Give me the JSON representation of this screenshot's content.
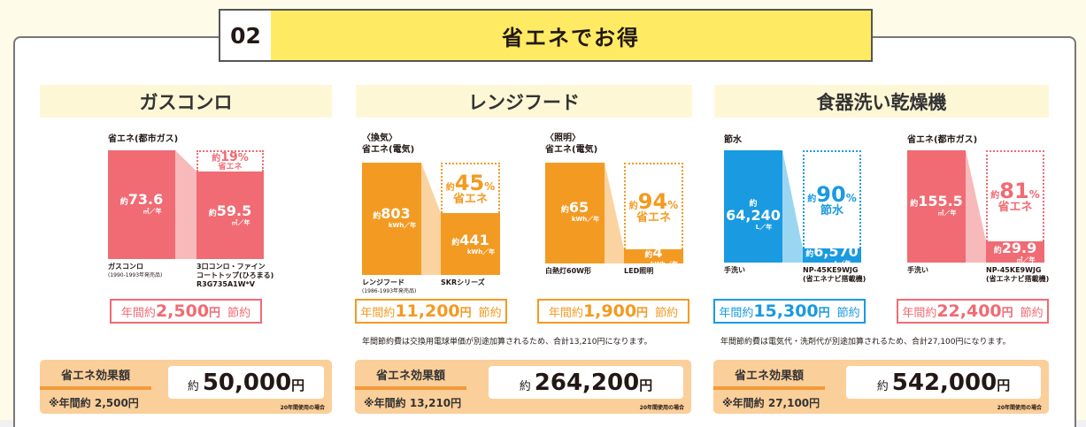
{
  "header": {
    "number": "02",
    "title": "省エネでお得"
  },
  "colors": {
    "pink": "#f06b73",
    "pink_light": "#f8b9bb",
    "orange": "#f39a22",
    "orange_light": "#fbd3a0",
    "blue": "#1a9ae0",
    "blue_light": "#9ad6f2",
    "effect_bg": "#fbcf9a",
    "effect_line": "#f39a3a",
    "title_yellow": "#ffeb63",
    "col_title_bg": "#fef7d6"
  },
  "columns": [
    {
      "title": "ガスコンロ",
      "charts": [
        {
          "label": "省エネ(都市ガス)",
          "color": "pink",
          "before": {
            "prefix": "約",
            "value": "73.6",
            "unit": "㎥／年",
            "caption": "ガスコンロ",
            "sub": "(1990-1993年発売品)"
          },
          "after": {
            "prefix": "約",
            "value": "59.5",
            "unit": "㎥／年",
            "caption": "3口コンロ・ファイン",
            "caption2": "コートトップ(ひろまる)",
            "caption3": "R3G735A1W*V"
          },
          "saving_pct": {
            "prefix": "約",
            "value": "19",
            "unit": "%",
            "text": "省エネ"
          }
        }
      ],
      "annual_savings": [
        {
          "prefix": "年間約",
          "amount": "2,500",
          "yen": "円",
          "suffix": "節約",
          "color": "pink"
        }
      ],
      "effect": {
        "label": "省エネ効果額",
        "annual": "※年間約 2,500円",
        "prefix": "約",
        "amount": "50,000",
        "yen": "円",
        "condition": "20年間使用の場合"
      }
    },
    {
      "title": "レンジフード",
      "charts": [
        {
          "label_top": "〈換気〉",
          "label": "省エネ(電気)",
          "color": "orange",
          "before": {
            "prefix": "約",
            "value": "803",
            "unit": "kWh／年",
            "caption": "レンジフード",
            "sub": "(1986-1993年発売品)"
          },
          "after": {
            "prefix": "約",
            "value": "441",
            "unit": "kWh／年",
            "caption": "SKRシリーズ"
          },
          "saving_pct": {
            "prefix": "約",
            "value": "45",
            "unit": "%",
            "text": "省エネ"
          }
        },
        {
          "label_top": "〈照明〉",
          "label": "省エネ(電気)",
          "color": "orange",
          "before": {
            "prefix": "約",
            "value": "65",
            "unit": "kWh／年",
            "caption": "白熱灯60W形"
          },
          "after": {
            "prefix": "約",
            "value": "4",
            "unit": "kWh／年",
            "caption": "LED照明"
          },
          "saving_pct": {
            "prefix": "約",
            "value": "94",
            "unit": "%",
            "text": "省エネ"
          }
        }
      ],
      "annual_savings": [
        {
          "prefix": "年間約",
          "amount": "11,200",
          "yen": "円",
          "suffix": "節約",
          "color": "orange"
        },
        {
          "prefix": "年間約",
          "amount": "1,900",
          "yen": "円",
          "suffix": "節約",
          "color": "orange"
        }
      ],
      "note": "年間節約費は交換用電球単価が別途加算されるため、合計13,210円になります。",
      "effect": {
        "label": "省エネ効果額",
        "annual": "※年間約 13,210円",
        "prefix": "約",
        "amount": "264,200",
        "yen": "円",
        "condition": "20年間使用の場合"
      }
    },
    {
      "title": "食器洗い乾燥機",
      "charts": [
        {
          "label": "節水",
          "color": "blue",
          "before": {
            "prefix": "約",
            "value": "64,240",
            "unit": "L／年",
            "caption": "手洗い"
          },
          "after": {
            "prefix": "約",
            "value": "6,570",
            "unit": "L／年",
            "caption": "NP-45KE9WJG",
            "caption2": "(省エネナビ搭載機)"
          },
          "saving_pct": {
            "prefix": "約",
            "value": "90",
            "unit": "%",
            "text": "節水"
          }
        },
        {
          "label": "省エネ(都市ガス)",
          "color": "pink",
          "before": {
            "prefix": "約",
            "value": "155.5",
            "unit": "㎥／年",
            "caption": "手洗い"
          },
          "after": {
            "prefix": "約",
            "value": "29.9",
            "unit": "㎥／年",
            "caption": "NP-45KE9WJG",
            "caption2": "(省エネナビ搭載機)"
          },
          "saving_pct": {
            "prefix": "約",
            "value": "81",
            "unit": "%",
            "text": "省エネ"
          }
        }
      ],
      "annual_savings": [
        {
          "prefix": "年間約",
          "amount": "15,300",
          "yen": "円",
          "suffix": "節約",
          "color": "blue"
        },
        {
          "prefix": "年間約",
          "amount": "22,400",
          "yen": "円",
          "suffix": "節約",
          "color": "pink"
        }
      ],
      "note": "年間節約費は電気代・洗剤代が別途加算されるため、合計27,100円になります。",
      "effect": {
        "label": "省エネ効果額",
        "annual": "※年間約 27,100円",
        "prefix": "約",
        "amount": "542,000",
        "yen": "円",
        "condition": "20年間使用の場合"
      }
    }
  ]
}
